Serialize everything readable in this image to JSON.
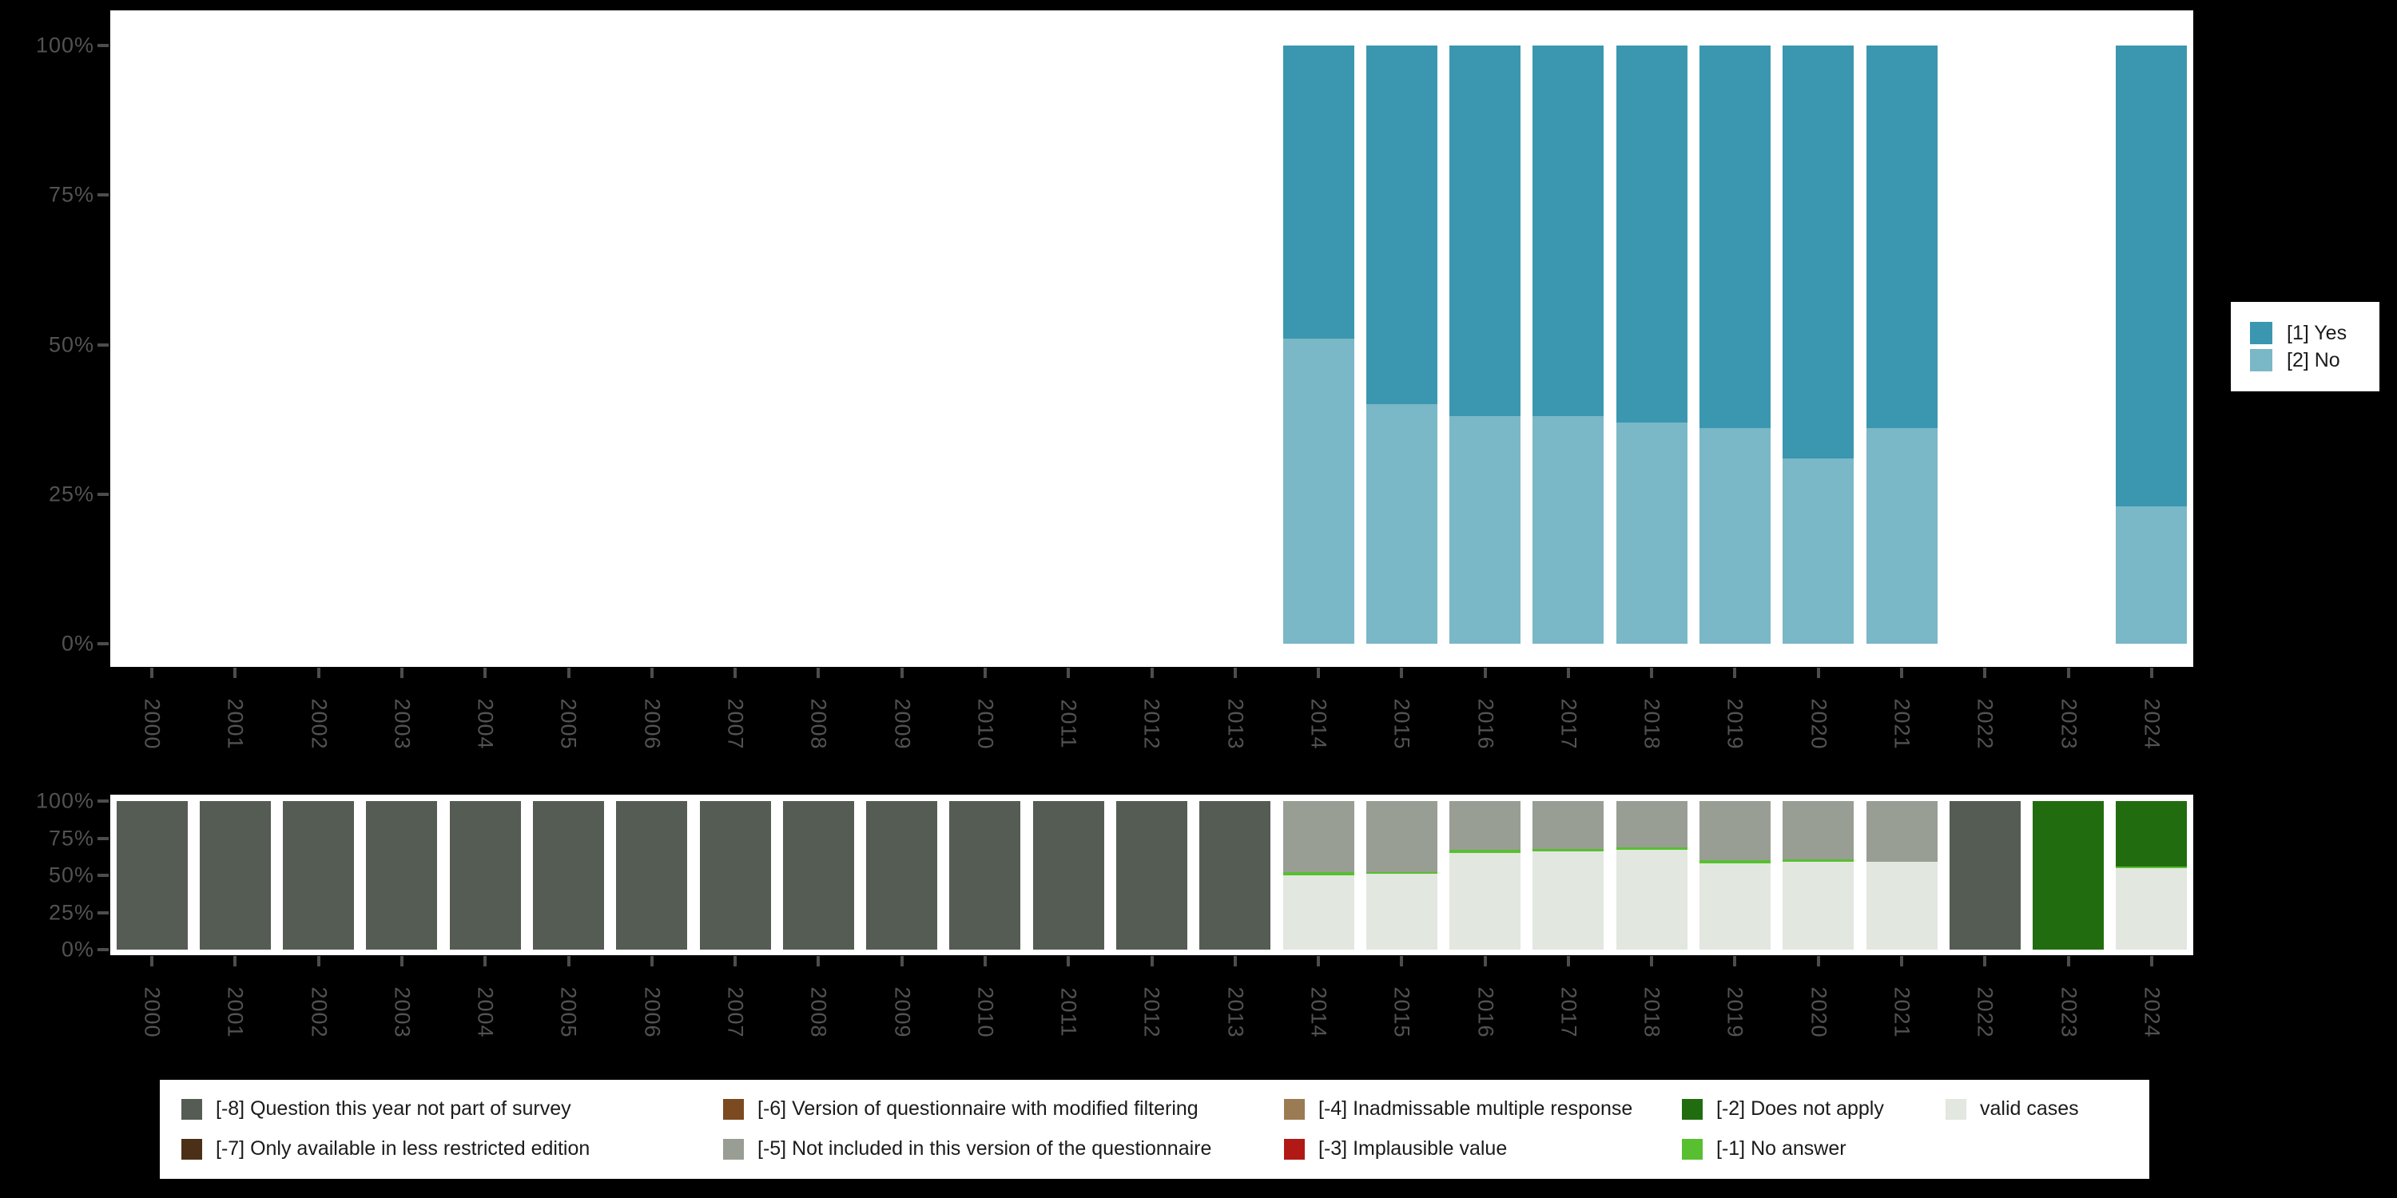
{
  "background_color": "#000000",
  "panel_color": "#ffffff",
  "axis": {
    "text_color": "#525252",
    "tick_color": "#4d4d4d",
    "y_axis_labels": [
      "100%",
      "75%",
      "50%",
      "25%",
      "0%"
    ]
  },
  "top_legend": {
    "items": [
      {
        "label": "[1] Yes",
        "color": "#3a97af"
      },
      {
        "label": "[2] No",
        "color": "#7ab7c7"
      }
    ]
  },
  "bottom_legend": {
    "items": [
      {
        "label": "[-8] Question this year not part of survey",
        "color": "#555c54",
        "col": 0,
        "row": 0
      },
      {
        "label": "[-7] Only available in less restricted edition",
        "color": "#4b2f17",
        "col": 0,
        "row": 1
      },
      {
        "label": "[-6] Version of questionnaire with modified filtering",
        "color": "#7b4a21",
        "col": 1,
        "row": 0
      },
      {
        "label": "[-5] Not included in this version of the questionnaire",
        "color": "#999e94",
        "col": 1,
        "row": 1
      },
      {
        "label": "[-4] Inadmissable multiple response",
        "color": "#9b7b53",
        "col": 2,
        "row": 0
      },
      {
        "label": "[-3] Implausible value",
        "color": "#b01916",
        "col": 2,
        "row": 1
      },
      {
        "label": "[-2] Does not apply",
        "color": "#226c10",
        "col": 3,
        "row": 0
      },
      {
        "label": "[-1] No answer",
        "color": "#58bf31",
        "col": 3,
        "row": 1
      },
      {
        "label": "valid cases",
        "color": "#e2e7e0",
        "col": 4,
        "row": 0
      }
    ]
  },
  "chart_data": [
    {
      "type": "bar",
      "subtype": "stacked_percent",
      "title": "",
      "xlabel": "",
      "ylabel": "",
      "ylim": [
        0,
        100
      ],
      "grid": false,
      "legend_position": "right",
      "categories": [
        "2000",
        "2001",
        "2002",
        "2003",
        "2004",
        "2005",
        "2006",
        "2007",
        "2008",
        "2009",
        "2010",
        "2011",
        "2012",
        "2013",
        "2014",
        "2015",
        "2016",
        "2017",
        "2018",
        "2019",
        "2020",
        "2021",
        "2022",
        "2023",
        "2024"
      ],
      "series": [
        {
          "name": "[2] No",
          "color": "#7ab7c7",
          "values": [
            null,
            null,
            null,
            null,
            null,
            null,
            null,
            null,
            null,
            null,
            null,
            null,
            null,
            null,
            51,
            40,
            38,
            38,
            37,
            36,
            31,
            36,
            null,
            null,
            23
          ]
        },
        {
          "name": "[1] Yes",
          "color": "#3a97af",
          "values": [
            null,
            null,
            null,
            null,
            null,
            null,
            null,
            null,
            null,
            null,
            null,
            null,
            null,
            null,
            49,
            60,
            62,
            62,
            63,
            64,
            69,
            64,
            null,
            null,
            77
          ]
        }
      ]
    },
    {
      "type": "bar",
      "subtype": "stacked_percent",
      "title": "",
      "xlabel": "",
      "ylabel": "",
      "ylim": [
        0,
        100
      ],
      "grid": false,
      "legend_position": "bottom",
      "categories": [
        "2000",
        "2001",
        "2002",
        "2003",
        "2004",
        "2005",
        "2006",
        "2007",
        "2008",
        "2009",
        "2010",
        "2011",
        "2012",
        "2013",
        "2014",
        "2015",
        "2016",
        "2017",
        "2018",
        "2019",
        "2020",
        "2021",
        "2022",
        "2023",
        "2024"
      ],
      "series": [
        {
          "name": "valid cases",
          "color": "#e2e7e0",
          "values": [
            0,
            0,
            0,
            0,
            0,
            0,
            0,
            0,
            0,
            0,
            0,
            0,
            0,
            0,
            50,
            51,
            65,
            66,
            67,
            58,
            59,
            59,
            0,
            0,
            55
          ]
        },
        {
          "name": "[-1] No answer",
          "color": "#58bf31",
          "values": [
            0,
            0,
            0,
            0,
            0,
            0,
            0,
            0,
            0,
            0,
            0,
            0,
            0,
            0,
            2,
            1,
            2,
            2,
            2,
            2,
            2,
            0,
            0,
            0,
            1
          ]
        },
        {
          "name": "[-5] Not included in this version of the questionnaire",
          "color": "#999e94",
          "values": [
            0,
            0,
            0,
            0,
            0,
            0,
            0,
            0,
            0,
            0,
            0,
            0,
            0,
            0,
            48,
            48,
            33,
            32,
            31,
            40,
            39,
            41,
            0,
            0,
            0
          ]
        },
        {
          "name": "[-8] Question this year not part of survey",
          "color": "#555c54",
          "values": [
            100,
            100,
            100,
            100,
            100,
            100,
            100,
            100,
            100,
            100,
            100,
            100,
            100,
            100,
            0,
            0,
            0,
            0,
            0,
            0,
            0,
            0,
            100,
            0,
            0
          ]
        },
        {
          "name": "[-2] Does not apply",
          "color": "#226c10",
          "values": [
            0,
            0,
            0,
            0,
            0,
            0,
            0,
            0,
            0,
            0,
            0,
            0,
            0,
            0,
            0,
            0,
            0,
            0,
            0,
            0,
            0,
            0,
            0,
            100,
            44
          ]
        }
      ]
    }
  ]
}
